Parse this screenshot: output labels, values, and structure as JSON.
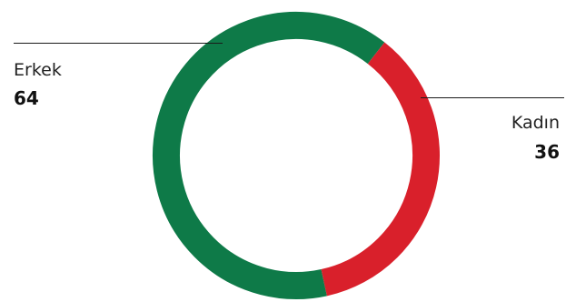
{
  "chart_data": {
    "type": "pie",
    "variant": "donut",
    "categories": [
      "Erkek",
      "Kadın"
    ],
    "values": [
      64,
      36
    ],
    "colors": [
      "#0e7a48",
      "#d9202b"
    ],
    "legend_placement": "beside-slices"
  },
  "labels": {
    "erkek_label": "Erkek",
    "erkek_value": "64",
    "kadin_label": "Kadın",
    "kadin_value": "36"
  }
}
